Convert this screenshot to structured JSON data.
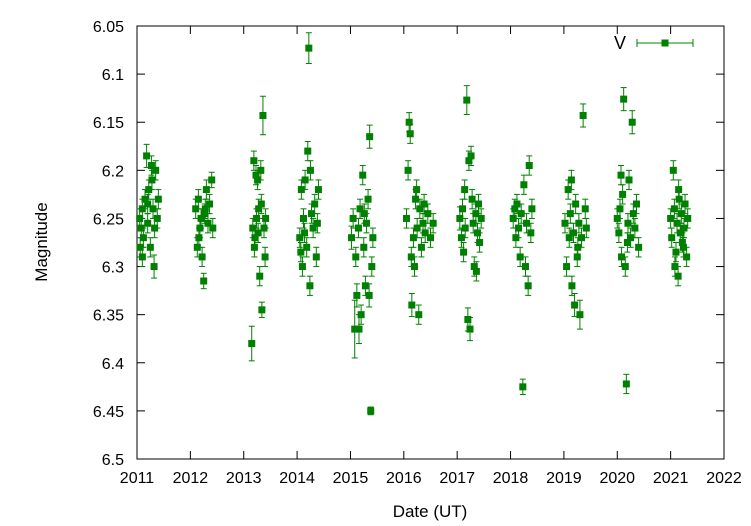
{
  "chart_data": {
    "type": "scatter",
    "xlabel": "Date (UT)",
    "ylabel": "Magnitude",
    "xlim": [
      2011,
      2022
    ],
    "ylim": [
      6.05,
      6.5
    ],
    "y_inverted": true,
    "grid": false,
    "legend": "top-right",
    "x_tick_labels": [
      "2011",
      "2012",
      "2013",
      "2014",
      "2015",
      "2016",
      "2017",
      "2018",
      "2019",
      "2020",
      "2021",
      "2022"
    ],
    "y_tick_labels": [
      "6.05",
      "6.1",
      "6.15",
      "6.2",
      "6.25",
      "6.3",
      "6.35",
      "6.4",
      "6.45",
      "6.5"
    ],
    "series": [
      {
        "name": "V",
        "color": "#008000",
        "marker": "square",
        "error_bars": true,
        "points": [
          [
            2011.05,
            6.25,
            0.01
          ],
          [
            2011.08,
            6.26,
            0.01
          ],
          [
            2011.1,
            6.24,
            0.01
          ],
          [
            2011.12,
            6.27,
            0.01
          ],
          [
            2011.15,
            6.23,
            0.01
          ],
          [
            2011.18,
            6.185,
            0.012
          ],
          [
            2011.2,
            6.255,
            0.01
          ],
          [
            2011.22,
            6.22,
            0.01
          ],
          [
            2011.25,
            6.28,
            0.01
          ],
          [
            2011.28,
            6.21,
            0.01
          ],
          [
            2011.3,
            6.24,
            0.01
          ],
          [
            2011.32,
            6.3,
            0.012
          ],
          [
            2011.35,
            6.2,
            0.01
          ],
          [
            2011.38,
            6.25,
            0.01
          ],
          [
            2011.1,
            6.29,
            0.01
          ],
          [
            2011.27,
            6.195,
            0.01
          ],
          [
            2011.33,
            6.26,
            0.01
          ],
          [
            2011.4,
            6.23,
            0.01
          ],
          [
            2011.06,
            6.28,
            0.01
          ],
          [
            2011.2,
            6.235,
            0.01
          ],
          [
            2012.1,
            6.24,
            0.01
          ],
          [
            2012.13,
            6.28,
            0.01
          ],
          [
            2012.15,
            6.23,
            0.01
          ],
          [
            2012.18,
            6.26,
            0.01
          ],
          [
            2012.2,
            6.25,
            0.01
          ],
          [
            2012.22,
            6.29,
            0.01
          ],
          [
            2012.25,
            6.315,
            0.008
          ],
          [
            2012.28,
            6.24,
            0.01
          ],
          [
            2012.3,
            6.22,
            0.01
          ],
          [
            2012.33,
            6.255,
            0.01
          ],
          [
            2012.36,
            6.235,
            0.01
          ],
          [
            2012.4,
            6.21,
            0.008
          ],
          [
            2012.42,
            6.26,
            0.01
          ],
          [
            2012.16,
            6.27,
            0.01
          ],
          [
            2012.27,
            6.245,
            0.01
          ],
          [
            2013.15,
            6.38,
            0.018
          ],
          [
            2013.17,
            6.26,
            0.01
          ],
          [
            2013.19,
            6.19,
            0.01
          ],
          [
            2013.21,
            6.27,
            0.01
          ],
          [
            2013.24,
            6.25,
            0.01
          ],
          [
            2013.26,
            6.21,
            0.01
          ],
          [
            2013.28,
            6.24,
            0.01
          ],
          [
            2013.3,
            6.31,
            0.01
          ],
          [
            2013.32,
            6.2,
            0.01
          ],
          [
            2013.34,
            6.345,
            0.008
          ],
          [
            2013.36,
            6.143,
            0.02
          ],
          [
            2013.38,
            6.26,
            0.01
          ],
          [
            2013.41,
            6.25,
            0.01
          ],
          [
            2013.2,
            6.28,
            0.01
          ],
          [
            2013.27,
            6.265,
            0.01
          ],
          [
            2013.33,
            6.235,
            0.01
          ],
          [
            2013.4,
            6.29,
            0.01
          ],
          [
            2013.23,
            6.205,
            0.01
          ],
          [
            2014.05,
            6.27,
            0.01
          ],
          [
            2014.08,
            6.22,
            0.01
          ],
          [
            2014.1,
            6.3,
            0.01
          ],
          [
            2014.12,
            6.25,
            0.01
          ],
          [
            2014.15,
            6.21,
            0.01
          ],
          [
            2014.18,
            6.28,
            0.01
          ],
          [
            2014.2,
            6.18,
            0.01
          ],
          [
            2014.22,
            6.073,
            0.016
          ],
          [
            2014.24,
            6.32,
            0.01
          ],
          [
            2014.27,
            6.245,
            0.01
          ],
          [
            2014.3,
            6.26,
            0.01
          ],
          [
            2014.33,
            6.235,
            0.01
          ],
          [
            2014.36,
            6.29,
            0.01
          ],
          [
            2014.4,
            6.22,
            0.01
          ],
          [
            2014.14,
            6.265,
            0.01
          ],
          [
            2014.25,
            6.2,
            0.01
          ],
          [
            2014.38,
            6.255,
            0.01
          ],
          [
            2014.07,
            6.285,
            0.01
          ],
          [
            2015.02,
            6.27,
            0.012
          ],
          [
            2015.05,
            6.25,
            0.01
          ],
          [
            2015.08,
            6.365,
            0.03
          ],
          [
            2015.1,
            6.29,
            0.01
          ],
          [
            2015.12,
            6.33,
            0.012
          ],
          [
            2015.15,
            6.26,
            0.01
          ],
          [
            2015.18,
            6.24,
            0.01
          ],
          [
            2015.2,
            6.35,
            0.01
          ],
          [
            2015.23,
            6.205,
            0.01
          ],
          [
            2015.25,
            6.28,
            0.01
          ],
          [
            2015.28,
            6.32,
            0.01
          ],
          [
            2015.3,
            6.255,
            0.01
          ],
          [
            2015.33,
            6.23,
            0.01
          ],
          [
            2015.36,
            6.165,
            0.012
          ],
          [
            2015.38,
            6.45,
            0.004
          ],
          [
            2015.4,
            6.3,
            0.01
          ],
          [
            2015.42,
            6.27,
            0.01
          ],
          [
            2015.16,
            6.365,
            0.015
          ],
          [
            2015.26,
            6.245,
            0.01
          ],
          [
            2015.35,
            6.33,
            0.012
          ],
          [
            2016.05,
            6.25,
            0.01
          ],
          [
            2016.08,
            6.2,
            0.01
          ],
          [
            2016.1,
            6.15,
            0.01
          ],
          [
            2016.12,
            6.162,
            0.01
          ],
          [
            2016.15,
            6.34,
            0.012
          ],
          [
            2016.18,
            6.27,
            0.01
          ],
          [
            2016.2,
            6.3,
            0.01
          ],
          [
            2016.22,
            6.23,
            0.01
          ],
          [
            2016.25,
            6.26,
            0.01
          ],
          [
            2016.28,
            6.35,
            0.01
          ],
          [
            2016.3,
            6.24,
            0.01
          ],
          [
            2016.33,
            6.28,
            0.01
          ],
          [
            2016.36,
            6.255,
            0.01
          ],
          [
            2016.4,
            6.265,
            0.01
          ],
          [
            2016.45,
            6.245,
            0.01
          ],
          [
            2016.5,
            6.27,
            0.01
          ],
          [
            2016.55,
            6.255,
            0.01
          ],
          [
            2016.14,
            6.29,
            0.01
          ],
          [
            2016.24,
            6.22,
            0.01
          ],
          [
            2016.38,
            6.235,
            0.01
          ],
          [
            2017.05,
            6.25,
            0.012
          ],
          [
            2017.08,
            6.27,
            0.01
          ],
          [
            2017.1,
            6.24,
            0.01
          ],
          [
            2017.12,
            6.285,
            0.01
          ],
          [
            2017.15,
            6.26,
            0.01
          ],
          [
            2017.18,
            6.127,
            0.015
          ],
          [
            2017.2,
            6.355,
            0.012
          ],
          [
            2017.22,
            6.19,
            0.01
          ],
          [
            2017.24,
            6.365,
            0.012
          ],
          [
            2017.26,
            6.185,
            0.01
          ],
          [
            2017.28,
            6.23,
            0.01
          ],
          [
            2017.3,
            6.255,
            0.01
          ],
          [
            2017.32,
            6.3,
            0.01
          ],
          [
            2017.35,
            6.245,
            0.01
          ],
          [
            2017.38,
            6.265,
            0.01
          ],
          [
            2017.4,
            6.235,
            0.01
          ],
          [
            2017.42,
            6.275,
            0.01
          ],
          [
            2017.45,
            6.25,
            0.01
          ],
          [
            2017.14,
            6.22,
            0.01
          ],
          [
            2017.36,
            6.305,
            0.01
          ],
          [
            2018.05,
            6.25,
            0.01
          ],
          [
            2018.08,
            6.24,
            0.01
          ],
          [
            2018.1,
            6.27,
            0.01
          ],
          [
            2018.12,
            6.235,
            0.01
          ],
          [
            2018.15,
            6.26,
            0.01
          ],
          [
            2018.18,
            6.29,
            0.01
          ],
          [
            2018.2,
            6.245,
            0.01
          ],
          [
            2018.23,
            6.425,
            0.008
          ],
          [
            2018.25,
            6.215,
            0.01
          ],
          [
            2018.28,
            6.3,
            0.01
          ],
          [
            2018.3,
            6.255,
            0.01
          ],
          [
            2018.33,
            6.32,
            0.01
          ],
          [
            2018.35,
            6.195,
            0.01
          ],
          [
            2018.38,
            6.265,
            0.01
          ],
          [
            2018.4,
            6.24,
            0.01
          ],
          [
            2019.02,
            6.255,
            0.01
          ],
          [
            2019.05,
            6.3,
            0.01
          ],
          [
            2019.08,
            6.22,
            0.01
          ],
          [
            2019.1,
            6.27,
            0.01
          ],
          [
            2019.12,
            6.245,
            0.01
          ],
          [
            2019.15,
            6.32,
            0.01
          ],
          [
            2019.18,
            6.265,
            0.01
          ],
          [
            2019.2,
            6.34,
            0.012
          ],
          [
            2019.22,
            6.235,
            0.01
          ],
          [
            2019.25,
            6.29,
            0.01
          ],
          [
            2019.28,
            6.255,
            0.01
          ],
          [
            2019.3,
            6.35,
            0.015
          ],
          [
            2019.33,
            6.27,
            0.01
          ],
          [
            2019.36,
            6.143,
            0.012
          ],
          [
            2019.4,
            6.24,
            0.01
          ],
          [
            2019.42,
            6.26,
            0.01
          ],
          [
            2019.14,
            6.21,
            0.01
          ],
          [
            2019.26,
            6.28,
            0.01
          ],
          [
            2020.0,
            6.25,
            0.01
          ],
          [
            2020.03,
            6.265,
            0.01
          ],
          [
            2020.05,
            6.24,
            0.01
          ],
          [
            2020.08,
            6.29,
            0.01
          ],
          [
            2020.1,
            6.225,
            0.01
          ],
          [
            2020.12,
            6.126,
            0.012
          ],
          [
            2020.15,
            6.3,
            0.01
          ],
          [
            2020.17,
            6.422,
            0.01
          ],
          [
            2020.2,
            6.255,
            0.01
          ],
          [
            2020.22,
            6.21,
            0.01
          ],
          [
            2020.25,
            6.27,
            0.01
          ],
          [
            2020.28,
            6.15,
            0.012
          ],
          [
            2020.3,
            6.245,
            0.01
          ],
          [
            2020.33,
            6.26,
            0.01
          ],
          [
            2020.36,
            6.235,
            0.01
          ],
          [
            2020.4,
            6.28,
            0.01
          ],
          [
            2020.07,
            6.205,
            0.01
          ],
          [
            2020.19,
            6.275,
            0.01
          ],
          [
            2021.0,
            6.25,
            0.01
          ],
          [
            2021.02,
            6.27,
            0.01
          ],
          [
            2021.05,
            6.2,
            0.01
          ],
          [
            2021.07,
            6.24,
            0.01
          ],
          [
            2021.1,
            6.285,
            0.01
          ],
          [
            2021.12,
            6.255,
            0.01
          ],
          [
            2021.14,
            6.31,
            0.01
          ],
          [
            2021.16,
            6.23,
            0.01
          ],
          [
            2021.18,
            6.265,
            0.01
          ],
          [
            2021.2,
            6.245,
            0.01
          ],
          [
            2021.22,
            6.275,
            0.01
          ],
          [
            2021.25,
            6.26,
            0.01
          ],
          [
            2021.27,
            6.235,
            0.01
          ],
          [
            2021.3,
            6.29,
            0.01
          ],
          [
            2021.32,
            6.25,
            0.01
          ],
          [
            2021.08,
            6.3,
            0.01
          ],
          [
            2021.15,
            6.22,
            0.01
          ],
          [
            2021.24,
            6.28,
            0.01
          ]
        ]
      }
    ]
  }
}
